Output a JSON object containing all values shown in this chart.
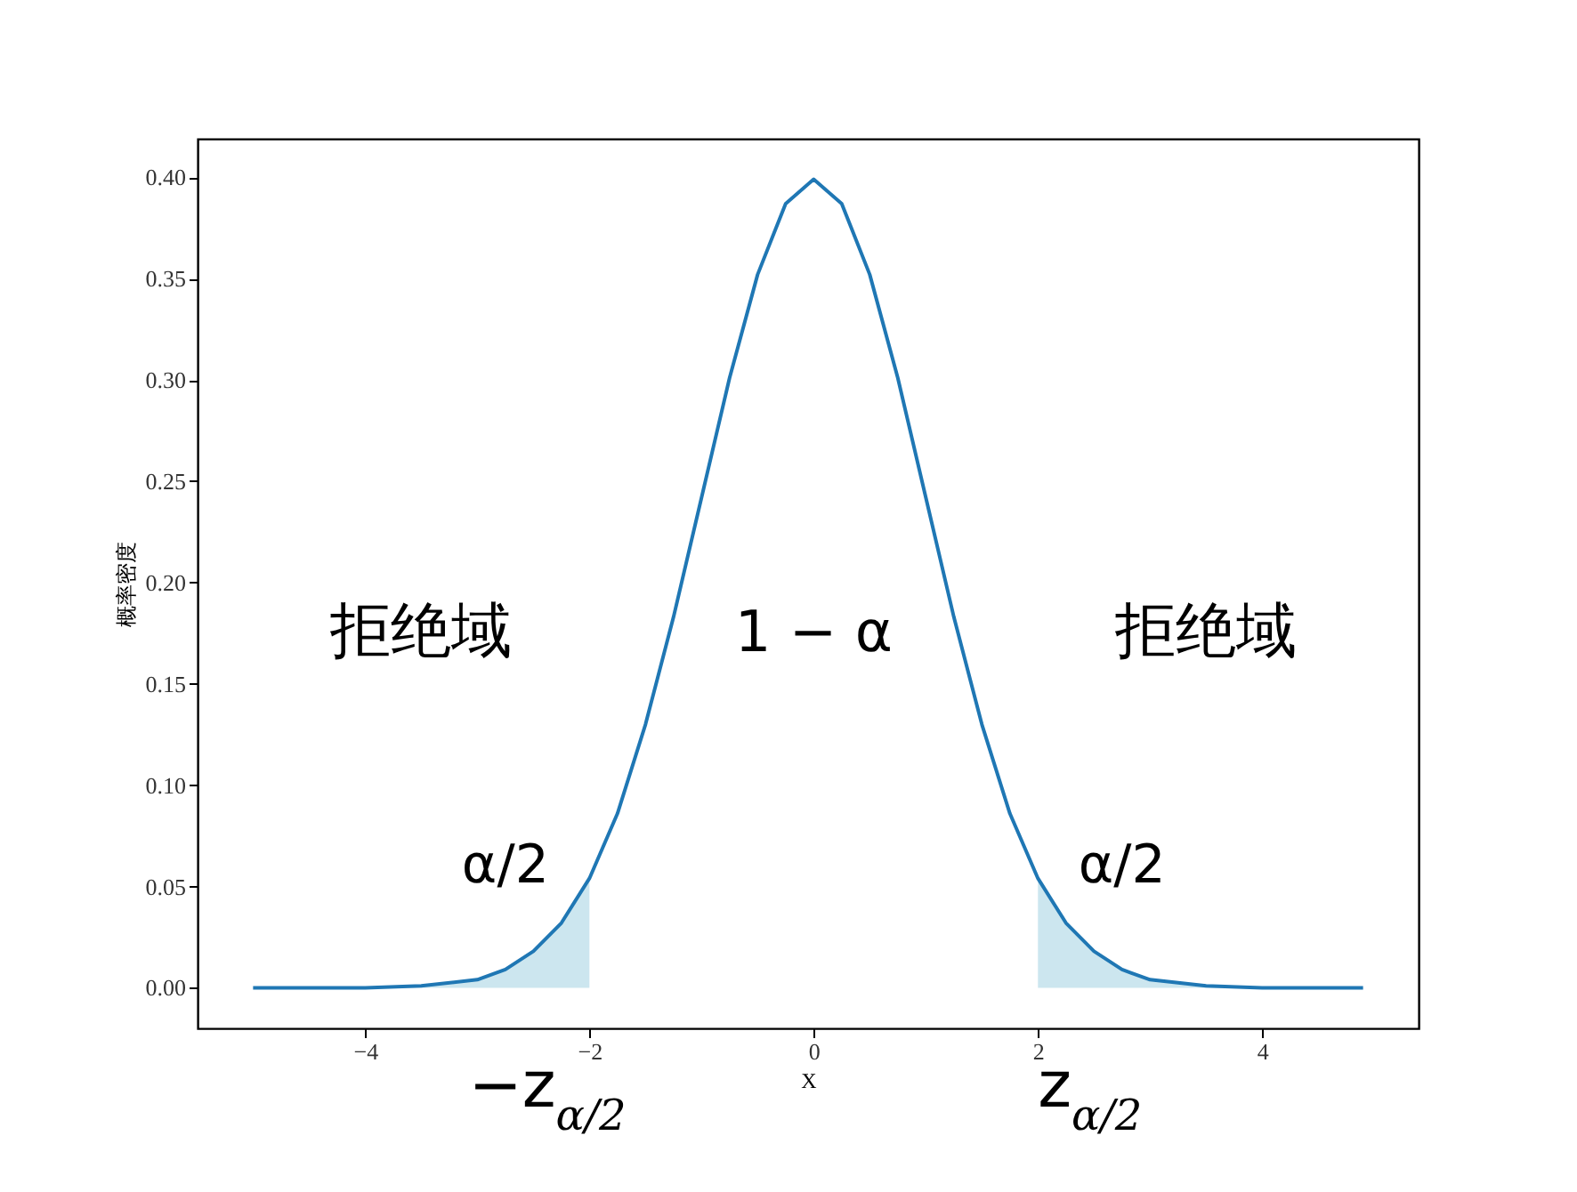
{
  "chart_data": {
    "type": "line",
    "xlabel": "X",
    "ylabel": "概率密度",
    "xlim": [
      -5.495,
      5.395
    ],
    "xticks": [
      -4,
      -2,
      0,
      2,
      4
    ],
    "ylim": [
      -0.02,
      0.419
    ],
    "yticks": [
      {
        "value": 0,
        "label": "0.00"
      },
      {
        "value": 0.05,
        "label": "0.05"
      },
      {
        "value": 0.1,
        "label": "0.10"
      },
      {
        "value": 0.15,
        "label": "0.15"
      },
      {
        "value": 0.2,
        "label": "0.20"
      },
      {
        "value": 0.25,
        "label": "0.25"
      },
      {
        "value": 0.3,
        "label": "0.30"
      },
      {
        "value": 0.35,
        "label": "0.35"
      },
      {
        "value": 0.4,
        "label": "0.40"
      }
    ],
    "grid": false,
    "marker": "none",
    "line_style": "solid",
    "series": [
      {
        "type": "area",
        "color": "#cce6ef",
        "x": [
          -5,
          -4.5,
          -4,
          -3.5,
          -3,
          -2.75,
          -2.5,
          -2.25,
          -2
        ],
        "values": [
          0.0,
          0.0,
          0.0,
          0.001,
          0.004,
          0.009,
          0.018,
          0.032,
          0.054
        ]
      },
      {
        "type": "area",
        "color": "#cce6ef",
        "x": [
          2,
          2.25,
          2.5,
          2.75,
          3,
          3.5,
          4,
          4.5,
          4.9
        ],
        "values": [
          0.054,
          0.032,
          0.018,
          0.009,
          0.004,
          0.001,
          0.0,
          0.0,
          0.0
        ]
      },
      {
        "color": "#1f77b4",
        "x": [
          -5,
          -4.5,
          -4,
          -3.5,
          -3,
          -2.75,
          -2.5,
          -2.25,
          -2,
          -1.75,
          -1.5,
          -1.25,
          -1,
          -0.75,
          -0.5,
          -0.25,
          0,
          0.25,
          0.5,
          0.75,
          1,
          1.25,
          1.5,
          1.75,
          2,
          2.25,
          2.5,
          2.75,
          3,
          3.5,
          4,
          4.5,
          4.9
        ],
        "values": [
          0.0,
          0.0,
          0.0,
          0.001,
          0.004,
          0.009,
          0.018,
          0.032,
          0.054,
          0.086,
          0.13,
          0.183,
          0.242,
          0.301,
          0.352,
          0.387,
          0.399,
          0.387,
          0.352,
          0.301,
          0.242,
          0.183,
          0.13,
          0.086,
          0.054,
          0.032,
          0.018,
          0.009,
          0.004,
          0.001,
          0.0,
          0.0,
          0.0
        ]
      }
    ],
    "annotations": [
      "拒绝域",
      "1 − α",
      "拒绝域",
      "α/2",
      "α/2",
      "−z$_{α/2}$",
      "z$_{α/2}$"
    ]
  }
}
